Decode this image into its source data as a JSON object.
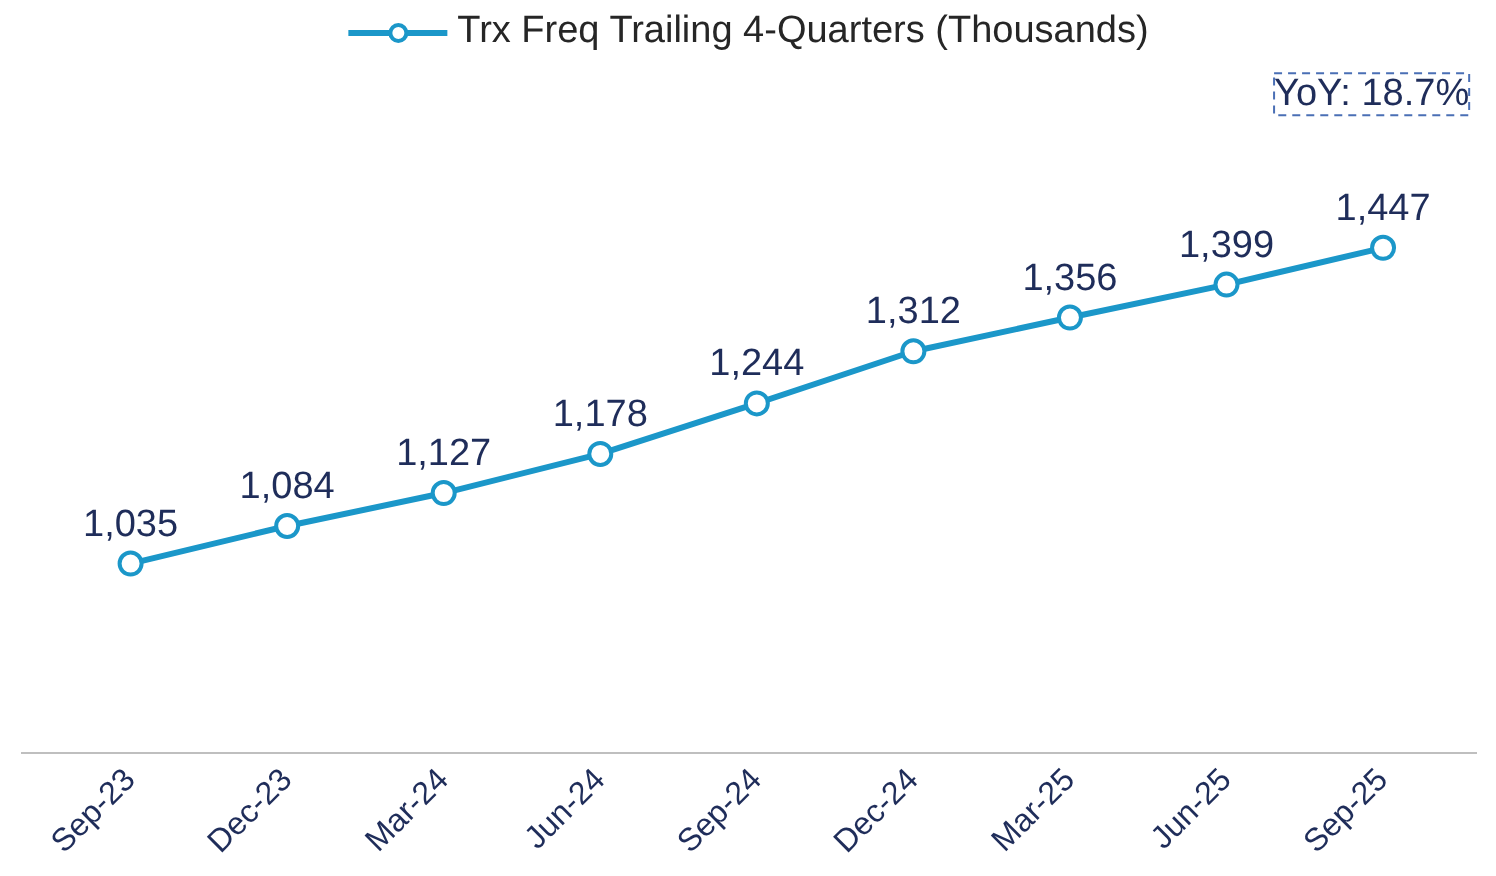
{
  "chart_data": {
    "type": "line",
    "categories": [
      "Sep-23",
      "Dec-23",
      "Mar-24",
      "Jun-24",
      "Sep-24",
      "Dec-24",
      "Mar-25",
      "Jun-25",
      "Sep-25"
    ],
    "series": [
      {
        "name": "Trx Freq Trailing 4-Quarters (Thousands)",
        "color": "#1b97c9",
        "values": [
          1035,
          1084,
          1127,
          1178,
          1244,
          1312,
          1356,
          1399,
          1447
        ],
        "value_labels": [
          "1,035",
          "1,084",
          "1,127",
          "1,178",
          "1,244",
          "1,312",
          "1,356",
          "1,399",
          "1,447"
        ]
      }
    ],
    "marker": "circle",
    "line_style": "solid",
    "legend": "top",
    "grid": false,
    "annotations": [
      "YoY: 18.7%"
    ]
  }
}
